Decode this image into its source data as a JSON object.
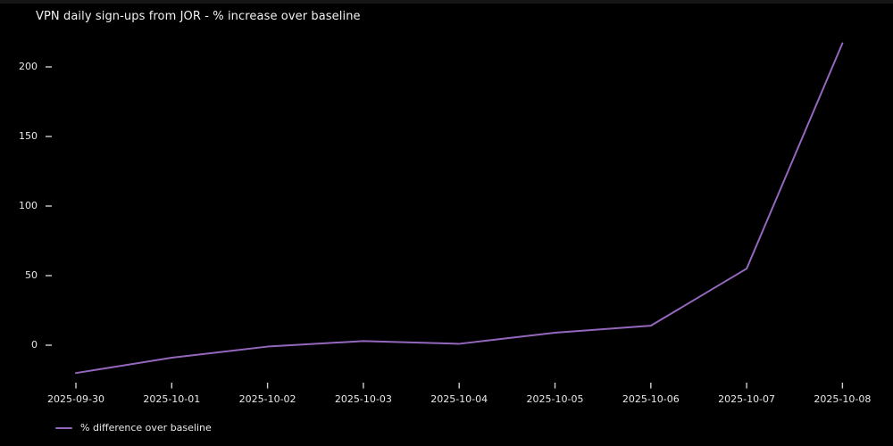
{
  "window": {
    "top_edge_color": "#161616"
  },
  "chart_data": {
    "type": "line",
    "title": "VPN daily sign-ups from JOR - % increase over baseline",
    "x": [
      "2025-09-30",
      "2025-10-01",
      "2025-10-02",
      "2025-10-03",
      "2025-10-04",
      "2025-10-05",
      "2025-10-06",
      "2025-10-07",
      "2025-10-08"
    ],
    "series": [
      {
        "name": "% difference over baseline",
        "color": "#9467bd",
        "values": [
          -20,
          -9,
          -1,
          3,
          1,
          9,
          14,
          55,
          217
        ]
      }
    ],
    "xlabel": "",
    "ylabel": "",
    "yticks": [
      0,
      50,
      100,
      150,
      200
    ],
    "ylim": [
      -26,
      224
    ],
    "grid": false,
    "legend_position": "lower-left",
    "colors": {
      "background": "#000000",
      "text": "#e9e9e9",
      "tick": "#cfcfcf"
    }
  }
}
